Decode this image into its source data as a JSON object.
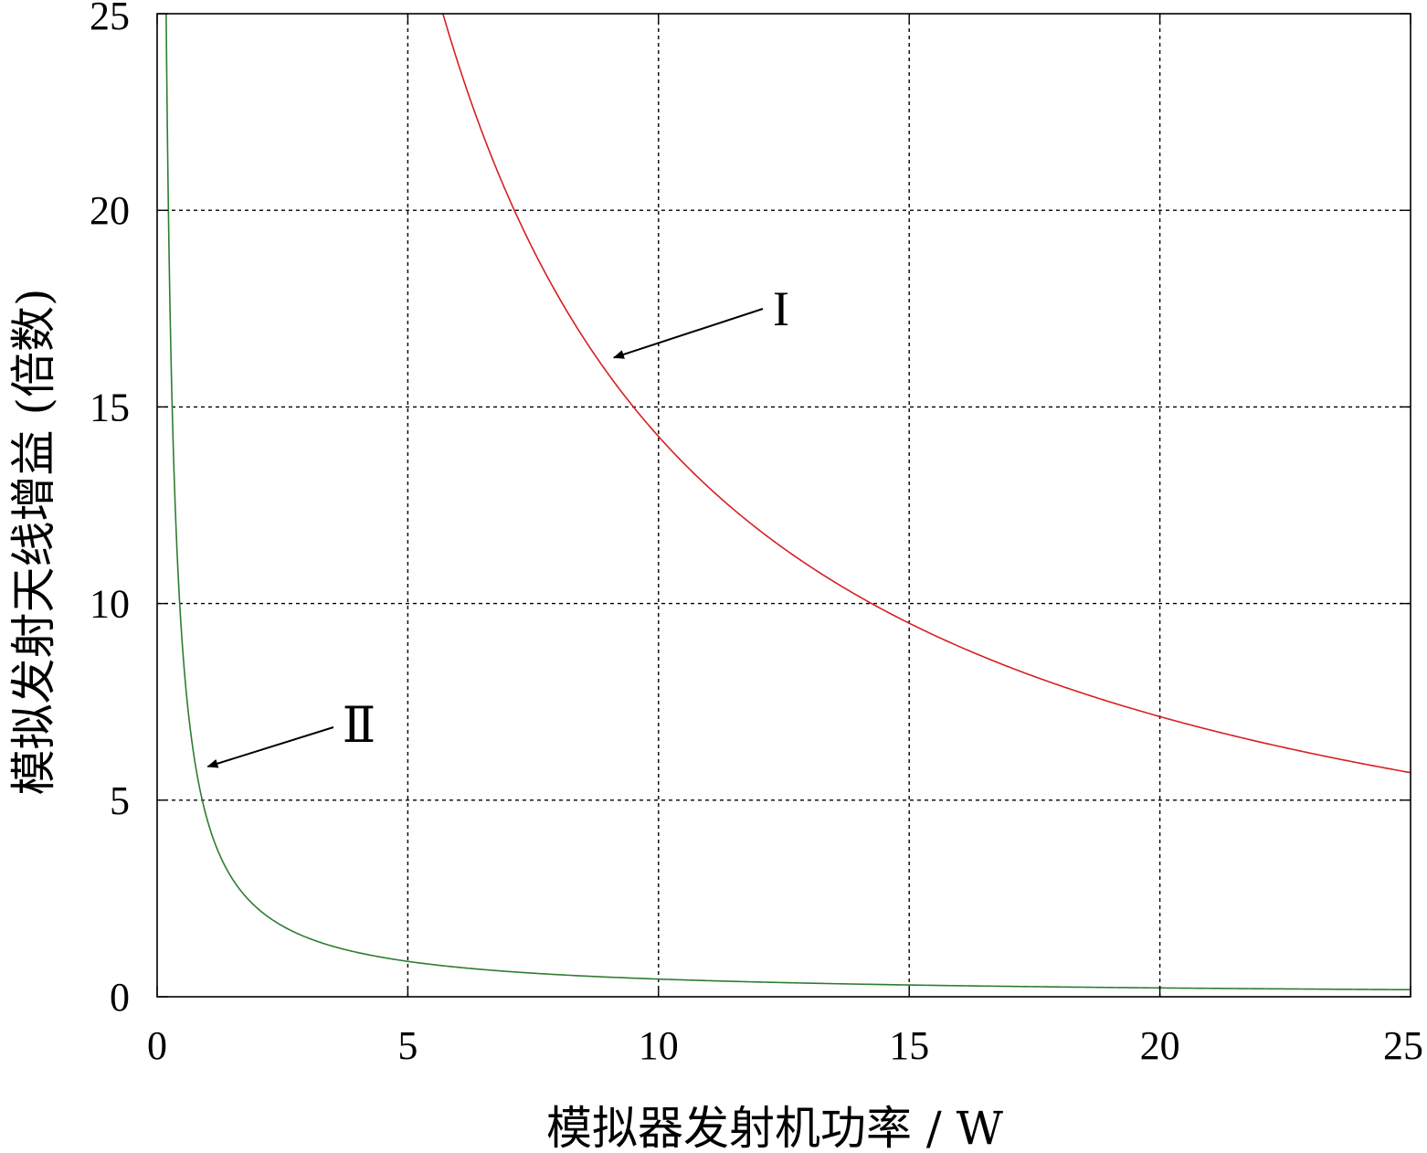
{
  "chart_data": {
    "type": "line",
    "title": "",
    "xlabel": "模拟器发射机功率 / W",
    "ylabel": "模拟发射天线增益 (倍数)",
    "xlim": [
      0,
      25
    ],
    "ylim": [
      0,
      25
    ],
    "xticks": [
      "0",
      "5",
      "10",
      "15",
      "20",
      "25"
    ],
    "yticks": [
      "0",
      "5",
      "10",
      "15",
      "20",
      "25"
    ],
    "grid": true,
    "series": [
      {
        "name": "I",
        "color": "#d62020",
        "formula_constant": 142.5,
        "x_range": [
          5.7,
          25
        ],
        "x": [
          5.7,
          6,
          7,
          8,
          9,
          10,
          12,
          14,
          15,
          16,
          18,
          20,
          22,
          25
        ],
        "values": [
          25,
          23.75,
          20.36,
          17.81,
          15.83,
          14.25,
          11.88,
          10.18,
          9.5,
          8.91,
          7.92,
          7.13,
          6.48,
          5.7
        ]
      },
      {
        "name": "II",
        "color": "#2e7d32",
        "formula_constant": 4.5,
        "x_range": [
          0.18,
          25
        ],
        "x": [
          0.18,
          0.3,
          0.5,
          0.75,
          1,
          1.5,
          2,
          3,
          5,
          7,
          10,
          15,
          20,
          25
        ],
        "values": [
          25,
          15,
          9,
          6,
          4.5,
          3,
          2.25,
          1.5,
          0.9,
          0.64,
          0.45,
          0.3,
          0.23,
          0.18
        ]
      }
    ],
    "annotations": [
      {
        "text": "I",
        "points_to_series": "I",
        "target": [
          9.0,
          16.3
        ]
      },
      {
        "text": "Ⅱ",
        "points_to_series": "II",
        "target": [
          0.9,
          5.9
        ]
      }
    ]
  }
}
